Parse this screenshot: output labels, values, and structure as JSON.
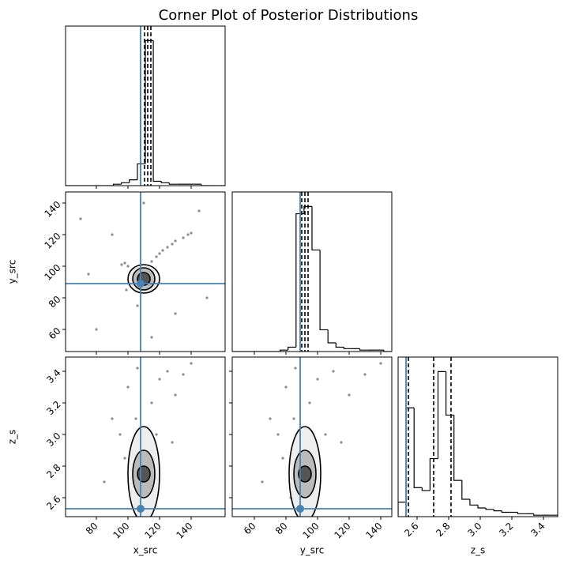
{
  "chart_data": {
    "type": "corner",
    "title": "Corner Plot of Posterior Distributions",
    "truth_color": "#4682b4",
    "parameters": [
      {
        "name": "x_src",
        "lim": [
          60.5,
          161.5
        ],
        "ticks": [
          80,
          100,
          120,
          140
        ],
        "truth": 108,
        "quantiles": [
          110.5,
          112.5,
          114.5
        ]
      },
      {
        "name": "y_src",
        "lim": [
          46,
          147
        ],
        "ticks": [
          60,
          80,
          100,
          120,
          140
        ],
        "truth": 89,
        "quantiles": [
          90,
          92,
          94
        ]
      },
      {
        "name": "z_s",
        "lim": [
          2.48,
          3.49
        ],
        "ticks": [
          2.6,
          2.8,
          {
            "value": 3,
            "label": "3.0"
          },
          3.2,
          3.4
        ],
        "truth": 2.53,
        "quantiles": [
          2.545,
          2.705,
          2.815
        ]
      }
    ],
    "histograms": [
      {
        "bins": [
          60.5,
          65.55,
          70.6,
          75.65,
          80.7,
          85.75,
          90.8,
          95.85,
          100.9,
          105.95,
          111.0,
          116.05,
          121.1,
          126.15,
          131.2,
          136.25,
          141.3,
          146.35,
          151.4,
          156.45,
          161.5
        ],
        "counts": [
          0,
          0,
          0,
          0,
          0,
          0,
          1,
          2,
          4,
          15,
          100,
          3,
          2,
          1,
          1,
          1,
          1,
          0,
          0,
          0
        ]
      },
      {
        "bins": [
          46,
          51.05,
          56.1,
          61.15,
          66.2,
          71.25,
          76.3,
          81.35,
          86.4,
          91.45,
          96.5,
          101.55,
          106.6,
          111.65,
          116.7,
          121.75,
          126.8,
          131.85,
          136.9,
          141.95,
          147
        ],
        "counts": [
          0,
          0,
          0,
          0,
          0,
          0,
          1,
          3,
          95,
          100,
          70,
          15,
          6,
          3,
          2,
          2,
          1,
          1,
          1,
          0
        ]
      },
      {
        "bins": [
          2.48,
          2.5305,
          2.581,
          2.6315,
          2.682,
          2.7325,
          2.783,
          2.8335,
          2.884,
          2.9345,
          2.985,
          3.0355,
          3.086,
          3.1365,
          3.187,
          3.2375,
          3.288,
          3.3385,
          3.389,
          3.4395,
          3.49
        ],
        "counts": [
          10,
          75,
          20,
          18,
          40,
          100,
          70,
          25,
          12,
          8,
          6,
          5,
          4,
          3,
          3,
          2,
          2,
          1,
          1,
          1
        ]
      }
    ],
    "pairs": [
      {
        "x": [
          100,
          98,
          103,
          96,
          105,
          110,
          115,
          120,
          125,
          130,
          135,
          138,
          140,
          128,
          122,
          118,
          112,
          102,
          99,
          108,
          90,
          80,
          70,
          130,
          145,
          75,
          150,
          115,
          110,
          106
        ],
        "y": [
          100,
          102,
          98,
          101,
          99,
          95,
          103,
          108,
          112,
          116,
          118,
          120,
          121,
          114,
          110,
          106,
          92,
          88,
          85,
          90,
          120,
          60,
          130,
          70,
          135,
          95,
          80,
          55,
          140,
          75
        ],
        "contour_center": [
          110,
          92
        ],
        "contour_radii": [
          [
            4,
            4
          ],
          [
            7,
            7
          ],
          [
            10,
            9
          ]
        ]
      },
      {
        "x": [
          100,
          105,
          110,
          115,
          108,
          112,
          95,
          120,
          125,
          102,
          90,
          130,
          135,
          140,
          85,
          118,
          106,
          111,
          98,
          128
        ],
        "y": [
          3.3,
          3.1,
          2.9,
          3.2,
          2.75,
          2.8,
          3.0,
          3.35,
          3.4,
          2.6,
          3.1,
          3.25,
          3.38,
          3.45,
          2.7,
          3.0,
          3.42,
          2.65,
          2.85,
          2.95
        ],
        "contour_center": [
          110,
          2.75
        ],
        "contour_radii": [
          [
            4,
            0.05
          ],
          [
            7,
            0.15
          ],
          [
            10,
            0.3
          ]
        ]
      },
      {
        "x": [
          80,
          85,
          90,
          95,
          88,
          92,
          75,
          100,
          110,
          83,
          70,
          120,
          130,
          140,
          65,
          105,
          86,
          91,
          78,
          115
        ],
        "y": [
          3.3,
          3.1,
          2.9,
          3.2,
          2.75,
          2.8,
          3.0,
          3.35,
          3.4,
          2.6,
          3.1,
          3.25,
          3.38,
          3.45,
          2.7,
          3.0,
          3.42,
          2.65,
          2.85,
          2.95
        ],
        "contour_center": [
          92,
          2.75
        ],
        "contour_radii": [
          [
            4,
            0.05
          ],
          [
            7,
            0.15
          ],
          [
            10,
            0.3
          ]
        ]
      }
    ]
  }
}
